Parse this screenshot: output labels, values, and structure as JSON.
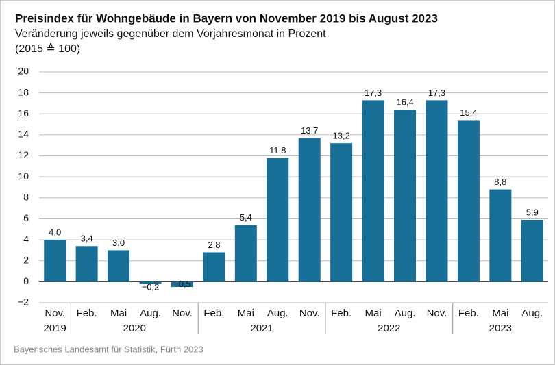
{
  "chart_data": {
    "type": "bar",
    "title": "Preisindex für Wohngebäude in Bayern von November 2019 bis August 2023",
    "subtitle": "Veränderung jeweils gegenüber dem Vorjahresmonat in Prozent",
    "note": "(2015 ≙ 100)",
    "source": "Bayerisches Landesamt für Statistik, Fürth 2023",
    "categories": [
      "Nov.",
      "Feb.",
      "Mai",
      "Aug.",
      "Nov.",
      "Feb.",
      "Mai",
      "Aug.",
      "Nov.",
      "Feb.",
      "Mai",
      "Aug.",
      "Nov.",
      "Feb.",
      "Mai",
      "Aug."
    ],
    "year_groups": [
      {
        "label": "2019",
        "start": 0,
        "end": 0
      },
      {
        "label": "2020",
        "start": 1,
        "end": 4
      },
      {
        "label": "2021",
        "start": 5,
        "end": 8
      },
      {
        "label": "2022",
        "start": 9,
        "end": 12
      },
      {
        "label": "2023",
        "start": 13,
        "end": 15
      }
    ],
    "values": [
      4.0,
      3.4,
      3.0,
      -0.2,
      -0.5,
      2.8,
      5.4,
      11.8,
      13.7,
      13.2,
      17.3,
      16.4,
      17.3,
      15.4,
      8.8,
      5.9
    ],
    "value_labels": [
      "4,0",
      "3,4",
      "3,0",
      "−0,2",
      "−0,5",
      "2,8",
      "5,4",
      "11,8",
      "13,7",
      "13,2",
      "17,3",
      "16,4",
      "17,3",
      "15,4",
      "8,8",
      "5,9"
    ],
    "color": "#176e96",
    "ylim": [
      -2,
      20
    ],
    "yticks": [
      {
        "value": -2,
        "label": "−2"
      },
      0,
      2,
      4,
      6,
      8,
      10,
      12,
      14,
      16,
      18,
      20
    ],
    "grid": true
  }
}
